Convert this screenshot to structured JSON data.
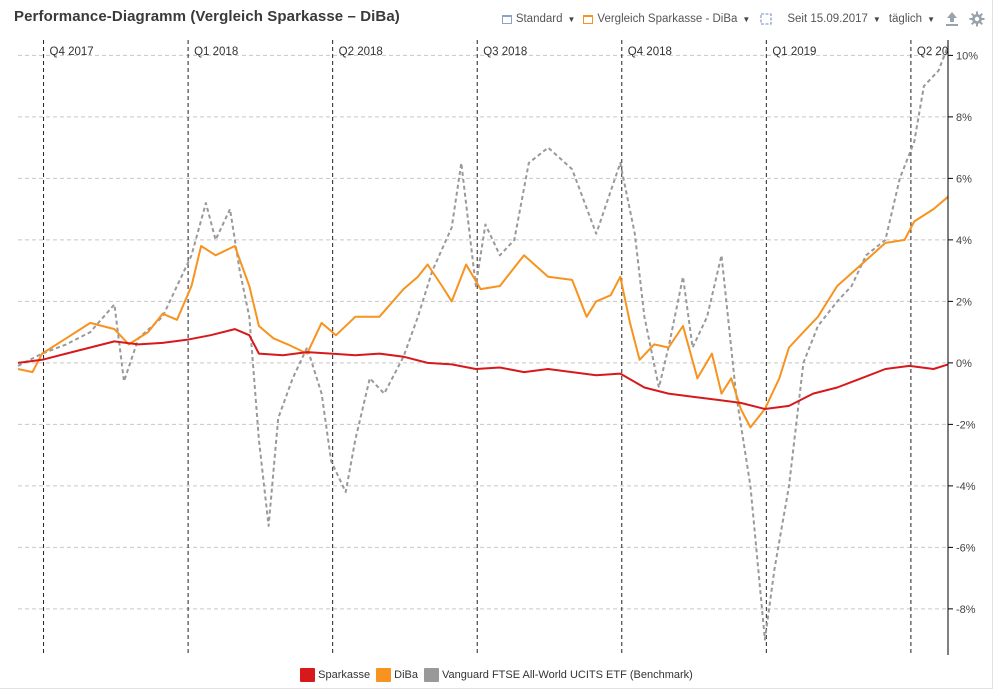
{
  "header": {
    "title": "Performance-Diagramm (Vergleich Sparkasse – DiBa)",
    "view_label": "Standard",
    "comparison_label": "Vergleich Sparkasse - DiBa",
    "period_label": "Seit 15.09.2017",
    "interval_label": "täglich"
  },
  "chart_data": {
    "type": "line",
    "title": "Performance-Diagramm (Vergleich Sparkasse – DiBa)",
    "xlabel": "",
    "ylabel": "",
    "ylim": [
      -9.5,
      10.5
    ],
    "y_ticks": [
      10,
      8,
      6,
      4,
      2,
      0,
      -2,
      -4,
      -6,
      -8
    ],
    "y_tick_labels": [
      "10%",
      "8%",
      "6%",
      "4%",
      "2%",
      "0%",
      "-2%",
      "-4%",
      "-6%",
      "-8%"
    ],
    "x_unit": "months since 15.09.2017",
    "xlim": [
      0,
      19.3
    ],
    "quarter_markers": [
      {
        "label": "Q4 2017",
        "x": 0.53
      },
      {
        "label": "Q1 2018",
        "x": 3.53
      },
      {
        "label": "Q2 2018",
        "x": 6.53
      },
      {
        "label": "Q3 2018",
        "x": 9.53
      },
      {
        "label": "Q4 2018",
        "x": 12.53
      },
      {
        "label": "Q1 2019",
        "x": 15.53
      },
      {
        "label": "Q2 20",
        "x": 18.53
      }
    ],
    "grid": true,
    "series": [
      {
        "name": "Sparkasse",
        "color": "#d7191c",
        "dashed": false,
        "points": [
          [
            0,
            0
          ],
          [
            0.5,
            0.1
          ],
          [
            1,
            0.3
          ],
          [
            1.5,
            0.5
          ],
          [
            2,
            0.7
          ],
          [
            2.5,
            0.6
          ],
          [
            3,
            0.65
          ],
          [
            3.5,
            0.75
          ],
          [
            4,
            0.9
          ],
          [
            4.5,
            1.1
          ],
          [
            4.8,
            0.9
          ],
          [
            5,
            0.3
          ],
          [
            5.5,
            0.25
          ],
          [
            6,
            0.35
          ],
          [
            6.5,
            0.3
          ],
          [
            7,
            0.25
          ],
          [
            7.5,
            0.3
          ],
          [
            8,
            0.2
          ],
          [
            8.5,
            0
          ],
          [
            9,
            -0.05
          ],
          [
            9.5,
            -0.2
          ],
          [
            10,
            -0.15
          ],
          [
            10.5,
            -0.3
          ],
          [
            11,
            -0.2
          ],
          [
            11.5,
            -0.3
          ],
          [
            12,
            -0.4
          ],
          [
            12.5,
            -0.35
          ],
          [
            13,
            -0.8
          ],
          [
            13.5,
            -1
          ],
          [
            14,
            -1.1
          ],
          [
            14.5,
            -1.2
          ],
          [
            15,
            -1.3
          ],
          [
            15.5,
            -1.5
          ],
          [
            16,
            -1.4
          ],
          [
            16.5,
            -1
          ],
          [
            17,
            -0.8
          ],
          [
            17.5,
            -0.5
          ],
          [
            18,
            -0.2
          ],
          [
            18.5,
            -0.1
          ],
          [
            19,
            -0.2
          ],
          [
            19.3,
            -0.05
          ]
        ]
      },
      {
        "name": "DiBa",
        "color": "#f7931e",
        "dashed": false,
        "points": [
          [
            0,
            -0.2
          ],
          [
            0.3,
            -0.3
          ],
          [
            0.5,
            0.3
          ],
          [
            1,
            0.8
          ],
          [
            1.5,
            1.3
          ],
          [
            2,
            1.1
          ],
          [
            2.3,
            0.6
          ],
          [
            2.7,
            1.0
          ],
          [
            3,
            1.6
          ],
          [
            3.3,
            1.4
          ],
          [
            3.6,
            2.5
          ],
          [
            3.8,
            3.8
          ],
          [
            4.1,
            3.5
          ],
          [
            4.5,
            3.8
          ],
          [
            4.8,
            2.5
          ],
          [
            5,
            1.2
          ],
          [
            5.3,
            0.8
          ],
          [
            5.6,
            0.6
          ],
          [
            6,
            0.3
          ],
          [
            6.3,
            1.3
          ],
          [
            6.6,
            0.9
          ],
          [
            7,
            1.5
          ],
          [
            7.5,
            1.5
          ],
          [
            8,
            2.4
          ],
          [
            8.3,
            2.8
          ],
          [
            8.5,
            3.2
          ],
          [
            8.8,
            2.5
          ],
          [
            9,
            2
          ],
          [
            9.3,
            3.2
          ],
          [
            9.6,
            2.4
          ],
          [
            10,
            2.5
          ],
          [
            10.5,
            3.5
          ],
          [
            11,
            2.8
          ],
          [
            11.5,
            2.7
          ],
          [
            11.8,
            1.5
          ],
          [
            12,
            2
          ],
          [
            12.3,
            2.2
          ],
          [
            12.5,
            2.8
          ],
          [
            12.7,
            1.3
          ],
          [
            12.9,
            0.1
          ],
          [
            13.2,
            0.6
          ],
          [
            13.5,
            0.5
          ],
          [
            13.8,
            1.2
          ],
          [
            14.1,
            -0.5
          ],
          [
            14.4,
            0.3
          ],
          [
            14.6,
            -1
          ],
          [
            14.8,
            -0.5
          ],
          [
            15,
            -1.5
          ],
          [
            15.2,
            -2.1
          ],
          [
            15.5,
            -1.5
          ],
          [
            15.8,
            -0.5
          ],
          [
            16,
            0.5
          ],
          [
            16.3,
            1
          ],
          [
            16.6,
            1.5
          ],
          [
            17,
            2.5
          ],
          [
            17.5,
            3.2
          ],
          [
            18,
            3.9
          ],
          [
            18.4,
            4
          ],
          [
            18.6,
            4.6
          ],
          [
            19,
            5
          ],
          [
            19.3,
            5.4
          ]
        ]
      },
      {
        "name": "Vanguard FTSE All-World UCITS ETF (Benchmark)",
        "color": "#999999",
        "dashed": true,
        "points": [
          [
            0,
            -0.1
          ],
          [
            0.5,
            0.3
          ],
          [
            1,
            0.6
          ],
          [
            1.5,
            1
          ],
          [
            2,
            1.9
          ],
          [
            2.2,
            -0.6
          ],
          [
            2.5,
            0.8
          ],
          [
            3,
            1.5
          ],
          [
            3.3,
            2.5
          ],
          [
            3.6,
            3.5
          ],
          [
            3.9,
            5.2
          ],
          [
            4.1,
            4
          ],
          [
            4.4,
            5
          ],
          [
            4.6,
            3
          ],
          [
            4.8,
            1.5
          ],
          [
            5,
            -2.5
          ],
          [
            5.2,
            -5.3
          ],
          [
            5.4,
            -1.8
          ],
          [
            5.7,
            -0.5
          ],
          [
            6,
            0.5
          ],
          [
            6.3,
            -1
          ],
          [
            6.5,
            -3.2
          ],
          [
            6.8,
            -4.2
          ],
          [
            7,
            -2.5
          ],
          [
            7.3,
            -0.5
          ],
          [
            7.6,
            -1
          ],
          [
            8,
            0.2
          ],
          [
            8.3,
            1.5
          ],
          [
            8.6,
            3
          ],
          [
            9,
            4.4
          ],
          [
            9.2,
            6.5
          ],
          [
            9.5,
            2.5
          ],
          [
            9.7,
            4.5
          ],
          [
            10,
            3.5
          ],
          [
            10.3,
            4
          ],
          [
            10.6,
            6.5
          ],
          [
            11,
            7
          ],
          [
            11.5,
            6.3
          ],
          [
            12,
            4.2
          ],
          [
            12.5,
            6.5
          ],
          [
            12.8,
            4.2
          ],
          [
            13,
            1.5
          ],
          [
            13.3,
            -0.8
          ],
          [
            13.5,
            0.5
          ],
          [
            13.8,
            2.8
          ],
          [
            14,
            0.5
          ],
          [
            14.3,
            1.5
          ],
          [
            14.6,
            3.5
          ],
          [
            14.9,
            -1
          ],
          [
            15.2,
            -4
          ],
          [
            15.5,
            -9
          ],
          [
            15.7,
            -6.7
          ],
          [
            16,
            -4
          ],
          [
            16.3,
            0
          ],
          [
            16.6,
            1.2
          ],
          [
            17,
            2
          ],
          [
            17.3,
            2.5
          ],
          [
            17.6,
            3.5
          ],
          [
            18,
            4
          ],
          [
            18.3,
            6
          ],
          [
            18.6,
            7.2
          ],
          [
            18.8,
            9
          ],
          [
            19.1,
            9.5
          ],
          [
            19.3,
            10.3
          ]
        ]
      }
    ]
  },
  "legend": {
    "items": [
      {
        "label": "Sparkasse",
        "color": "#d7191c"
      },
      {
        "label": "DiBa",
        "color": "#f7931e"
      },
      {
        "label": "Vanguard FTSE All-World UCITS ETF (Benchmark)",
        "color": "#999999"
      }
    ]
  }
}
